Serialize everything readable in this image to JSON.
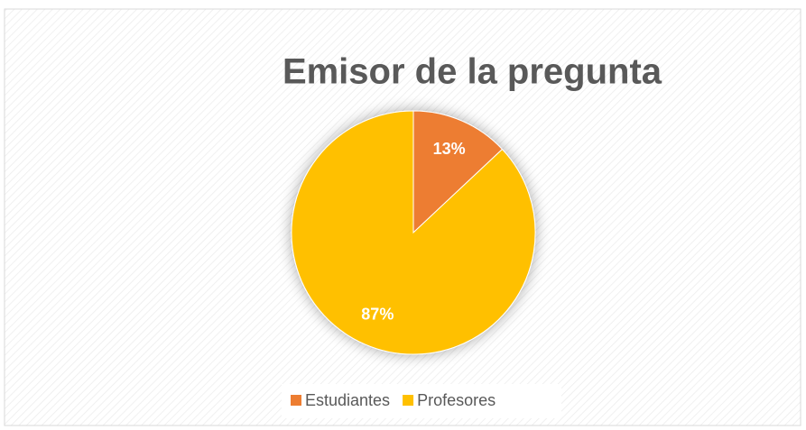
{
  "chart_data": {
    "type": "pie",
    "title": "Emisor de la pregunta",
    "categories": [
      "Estudiantes",
      "Profesores"
    ],
    "values": [
      13,
      87
    ],
    "value_labels": [
      "13%",
      "87%"
    ],
    "colors": [
      "#ed7d31",
      "#ffc000"
    ],
    "legend": "bottom"
  }
}
